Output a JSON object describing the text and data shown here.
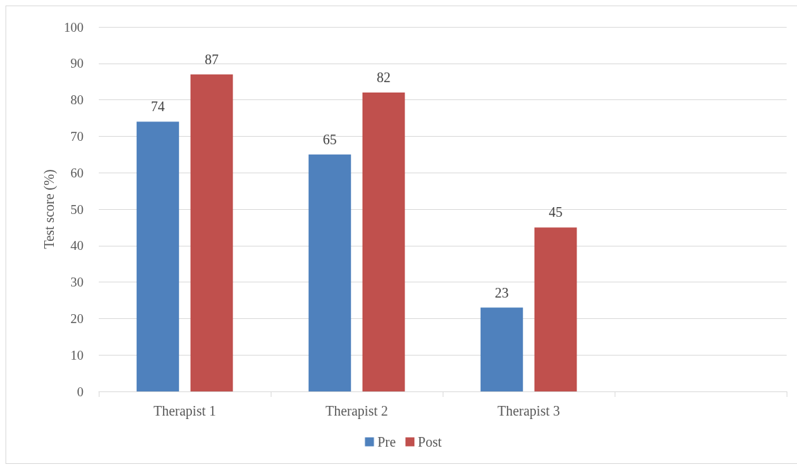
{
  "chart_data": {
    "type": "bar",
    "ylabel": "Test score (%)",
    "categories": [
      "Therapist 1",
      "Therapist 2",
      "Therapist 3",
      null
    ],
    "series": [
      {
        "name": "Pre",
        "color": "#4f81bd",
        "values": [
          74,
          65,
          23,
          null
        ]
      },
      {
        "name": "Post",
        "color": "#c0504d",
        "values": [
          87,
          82,
          45,
          null
        ]
      }
    ],
    "ylim": [
      0,
      100
    ],
    "yticks": [
      0,
      10,
      20,
      30,
      40,
      50,
      60,
      70,
      80,
      90,
      100
    ],
    "grid": "y",
    "legend": "bottom",
    "data_labels": true
  }
}
